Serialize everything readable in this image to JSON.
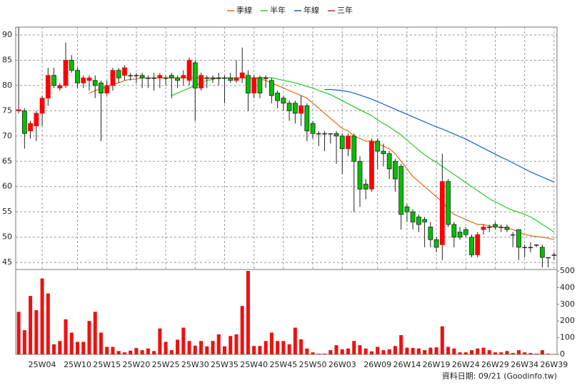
{
  "chart_data": {
    "type": "candlestick",
    "footnote": "資料日期: 09/21 (Goodinfo.tw)",
    "categories": [
      null,
      null,
      null,
      null,
      "25W04",
      null,
      null,
      null,
      null,
      null,
      "25W10",
      null,
      null,
      null,
      null,
      "25W15",
      null,
      null,
      null,
      null,
      "25W20",
      null,
      null,
      null,
      null,
      "25W25",
      null,
      null,
      null,
      null,
      "25W30",
      null,
      null,
      null,
      null,
      "25W35",
      null,
      null,
      null,
      null,
      "25W40",
      null,
      null,
      null,
      null,
      "25W45",
      null,
      null,
      null,
      null,
      "25W50",
      null,
      null,
      null,
      null,
      "26W03",
      null,
      null,
      null,
      null,
      null,
      "26W09",
      null,
      null,
      null,
      null,
      "26W14",
      null,
      null,
      null,
      null,
      "26W19",
      null,
      null,
      null,
      null,
      "26W24",
      null,
      null,
      null,
      null,
      "26W29",
      null,
      null,
      null,
      null,
      "26W34",
      null,
      null,
      null,
      null,
      "26W39"
    ],
    "open": [
      75,
      75,
      71,
      72,
      74.5,
      77.5,
      82,
      79.5,
      80,
      85,
      83,
      80.5,
      81,
      81,
      80.5,
      78.5,
      80,
      83,
      82,
      82,
      82,
      82,
      81.5,
      81.5,
      81.5,
      81.5,
      82,
      81.5,
      81.5,
      81,
      84.5,
      79.5,
      81.5,
      81.5,
      81.5,
      81.5,
      81.5,
      81,
      81.5,
      82,
      78.5,
      81.5,
      81.5,
      81,
      78.5,
      77.5,
      76.5,
      76.5,
      74.5,
      76,
      72.5,
      70.5,
      70.5,
      70.5,
      70.5,
      70,
      67.5,
      70,
      65,
      60.5,
      59.5,
      69,
      67,
      66.5,
      65,
      64,
      56,
      55,
      54,
      53.5,
      52,
      49.5,
      48.5,
      61,
      52.5,
      51,
      51.5,
      50,
      46.5,
      51.5,
      52,
      52.5,
      52,
      52,
      50.5,
      51.5,
      48,
      48,
      48.5,
      48,
      46,
      46.5
    ],
    "high": [
      91.5,
      75.5,
      73,
      75,
      78,
      83.5,
      83.5,
      80.5,
      88.5,
      86,
      83.5,
      82,
      82,
      82,
      81,
      81,
      83.5,
      83.5,
      84,
      82.5,
      82.5,
      82.5,
      82,
      82.5,
      82.5,
      82,
      82.5,
      82,
      83,
      85.5,
      85,
      82.5,
      82,
      82,
      82.5,
      82,
      82.5,
      85,
      87.5,
      83,
      82,
      82,
      82,
      81.5,
      79,
      78,
      77,
      77,
      78,
      76.5,
      73,
      71,
      71,
      70.5,
      71,
      70.5,
      70.5,
      70.5,
      66,
      61.5,
      69.5,
      69.5,
      68.5,
      67,
      65.5,
      64.5,
      56.5,
      55.5,
      54.5,
      54,
      53,
      50,
      66.5,
      61.5,
      53,
      52,
      52,
      50.5,
      51,
      52.5,
      52.5,
      53,
      52.5,
      52.5,
      51,
      51.5,
      48.5,
      49,
      48.5,
      48.5,
      46,
      47
    ],
    "low": [
      74.5,
      67.5,
      69.5,
      69,
      72,
      76,
      79.5,
      79,
      79.5,
      82.5,
      79.5,
      79.5,
      79,
      77.5,
      69,
      78,
      79,
      80.5,
      81,
      81,
      80.5,
      79.5,
      79.5,
      79,
      79.5,
      80,
      77.5,
      79.5,
      80,
      80,
      73,
      79,
      79.5,
      80.5,
      80,
      76.5,
      80.5,
      80.5,
      80.5,
      75,
      77.5,
      77.5,
      79.5,
      76.5,
      75.5,
      75,
      73,
      72.5,
      72,
      69,
      69.5,
      68,
      67,
      68.5,
      64.5,
      62.5,
      66,
      55,
      56,
      57.5,
      59,
      63.5,
      64,
      61.5,
      59,
      51.5,
      53,
      51.5,
      51,
      48,
      48,
      47,
      45.5,
      52,
      48,
      49.5,
      50,
      46,
      46,
      50.5,
      51,
      51.5,
      51,
      51,
      48,
      45.5,
      46,
      47,
      48,
      44,
      44,
      45.5
    ],
    "close": [
      75.2,
      70.5,
      72.5,
      74.5,
      77.5,
      82,
      80,
      80,
      85,
      83,
      80.5,
      81.5,
      81.5,
      80,
      78.5,
      80,
      83,
      81.5,
      83.5,
      82,
      82,
      81.5,
      81.5,
      81.5,
      82,
      81.5,
      81.5,
      81,
      82,
      85,
      79.5,
      82,
      81.5,
      81.5,
      81.5,
      81.5,
      81,
      81.5,
      82.5,
      78.5,
      81.5,
      78.5,
      81.5,
      78,
      77,
      76.5,
      75,
      74.5,
      76,
      71,
      70.5,
      70.5,
      70.5,
      70.5,
      70,
      67.5,
      70,
      65,
      59.5,
      59.5,
      69,
      67,
      66.5,
      63.5,
      61.5,
      54.5,
      55,
      53,
      52.5,
      53,
      49.5,
      48,
      61,
      52.5,
      50,
      50,
      50.5,
      46.5,
      50.5,
      52,
      52,
      52,
      52,
      51.5,
      50.5,
      48,
      48,
      48,
      48.5,
      46,
      46,
      46.5
    ],
    "up_color": "#ff0000",
    "down_color": "#00c000",
    "ylim": [
      43.6,
      91.55
    ],
    "yticks": [
      45,
      50,
      55,
      60,
      65,
      70,
      75,
      80,
      85,
      90
    ],
    "grid": true,
    "series": [
      {
        "name": "季線",
        "color": "#e06a10",
        "values": [
          null,
          null,
          null,
          null,
          null,
          null,
          null,
          null,
          null,
          null,
          null,
          null,
          78.5,
          79,
          79.3,
          79.8,
          80.2,
          80.5,
          81,
          81.2,
          81.3,
          81.5,
          81.5,
          81.5,
          81.5,
          81.5,
          81.5,
          81.5,
          81.5,
          81.5,
          81.5,
          81.5,
          81.5,
          81.5,
          81.5,
          81.5,
          81.5,
          81.5,
          81.5,
          81.5,
          81.5,
          81.3,
          81,
          80.5,
          80,
          79.5,
          79,
          78.5,
          78,
          77.5,
          76.5,
          75.5,
          74.5,
          73.5,
          72.5,
          71.5,
          71,
          70,
          69.5,
          69,
          69,
          68.5,
          68,
          67.5,
          66.5,
          65,
          63.5,
          62,
          61,
          60,
          59,
          58,
          57,
          55.5,
          54.5,
          54,
          53.5,
          53,
          52.5,
          52.5,
          52.2,
          52,
          52,
          51.8,
          51.5,
          51,
          50.5,
          50.3,
          50.1,
          50,
          49.8,
          49.5
        ]
      },
      {
        "name": "半年",
        "color": "#22cc22",
        "values": [
          null,
          null,
          null,
          null,
          null,
          null,
          null,
          null,
          null,
          null,
          null,
          null,
          null,
          null,
          null,
          null,
          null,
          null,
          null,
          null,
          null,
          null,
          null,
          null,
          null,
          null,
          78,
          78.5,
          79,
          79.5,
          80,
          80.5,
          81,
          81.2,
          81.5,
          81.5,
          81.5,
          81.5,
          81.5,
          81.5,
          81.5,
          81.6,
          81.6,
          81.5,
          81.3,
          81,
          80.8,
          80.5,
          80.2,
          79.8,
          79.5,
          79,
          78.6,
          78.2,
          77.6,
          77,
          76.4,
          75.8,
          75.2,
          74.6,
          74,
          73.2,
          72.5,
          71.8,
          71,
          70.2,
          69.2,
          68.2,
          67.2,
          66.3,
          65.5,
          64.8,
          64,
          63.2,
          62.4,
          61.6,
          60.8,
          60,
          59.2,
          58.4,
          57.6,
          57,
          56.4,
          55.8,
          55.3,
          54.9,
          54.5,
          54,
          53.3,
          52.5,
          51.8,
          51
        ]
      },
      {
        "name": "年線",
        "color": "#1060d0",
        "values": [
          null,
          null,
          null,
          null,
          null,
          null,
          null,
          null,
          null,
          null,
          null,
          null,
          null,
          null,
          null,
          null,
          null,
          null,
          null,
          null,
          null,
          null,
          null,
          null,
          null,
          null,
          null,
          null,
          null,
          null,
          null,
          null,
          null,
          null,
          null,
          null,
          null,
          null,
          null,
          null,
          null,
          null,
          null,
          null,
          null,
          null,
          null,
          null,
          null,
          null,
          null,
          null,
          79.2,
          79.2,
          79.1,
          79,
          78.8,
          78.5,
          78.1,
          77.7,
          77.3,
          76.8,
          76.3,
          75.8,
          75.3,
          74.8,
          74.3,
          73.8,
          73.3,
          72.8,
          72.3,
          71.8,
          71.4,
          70.9,
          70.4,
          69.9,
          69.4,
          68.8,
          68.2,
          67.6,
          67,
          66.4,
          65.8,
          65.3,
          64.7,
          64.1,
          63.5,
          62.9,
          62.4,
          61.9,
          61.4,
          60.9
        ]
      },
      {
        "name": "三年",
        "color": "#dd2222",
        "values": [
          null,
          null,
          null,
          null,
          null,
          null,
          null,
          null,
          null,
          null,
          null,
          null,
          null,
          null,
          null,
          null,
          null,
          null,
          null,
          null,
          null,
          null,
          null,
          null,
          null,
          null,
          null,
          null,
          null,
          null,
          null,
          null,
          null,
          null,
          null,
          null,
          null,
          null,
          null,
          null,
          null,
          null,
          null,
          null,
          null,
          null,
          null,
          null,
          null,
          null,
          null,
          null,
          null,
          null,
          null,
          null,
          null,
          null,
          null,
          null,
          null,
          null,
          null,
          null,
          null,
          null,
          null,
          null,
          null,
          null,
          null,
          null,
          null,
          null,
          null,
          null,
          null,
          null,
          null,
          null,
          null,
          null,
          null,
          null,
          null,
          null,
          null,
          null,
          null,
          null,
          null,
          null
        ]
      }
    ],
    "volume": {
      "color": "#ee1111",
      "values": [
        255,
        145,
        350,
        265,
        455,
        365,
        60,
        80,
        210,
        130,
        75,
        75,
        200,
        255,
        130,
        45,
        45,
        20,
        12,
        22,
        38,
        25,
        35,
        20,
        155,
        75,
        25,
        88,
        160,
        80,
        52,
        80,
        48,
        80,
        120,
        48,
        110,
        120,
        290,
        500,
        50,
        50,
        80,
        130,
        80,
        80,
        60,
        160,
        90,
        35,
        12,
        4,
        4,
        25,
        55,
        30,
        35,
        80,
        55,
        35,
        18,
        45,
        25,
        30,
        50,
        115,
        40,
        38,
        35,
        25,
        40,
        42,
        168,
        45,
        35,
        12,
        12,
        25,
        35,
        40,
        25,
        12,
        12,
        20,
        8,
        25,
        12,
        8,
        4,
        25,
        4,
        2
      ],
      "ylim": [
        0,
        500
      ],
      "yticks": [
        0,
        100,
        200,
        300,
        400,
        500
      ]
    }
  }
}
